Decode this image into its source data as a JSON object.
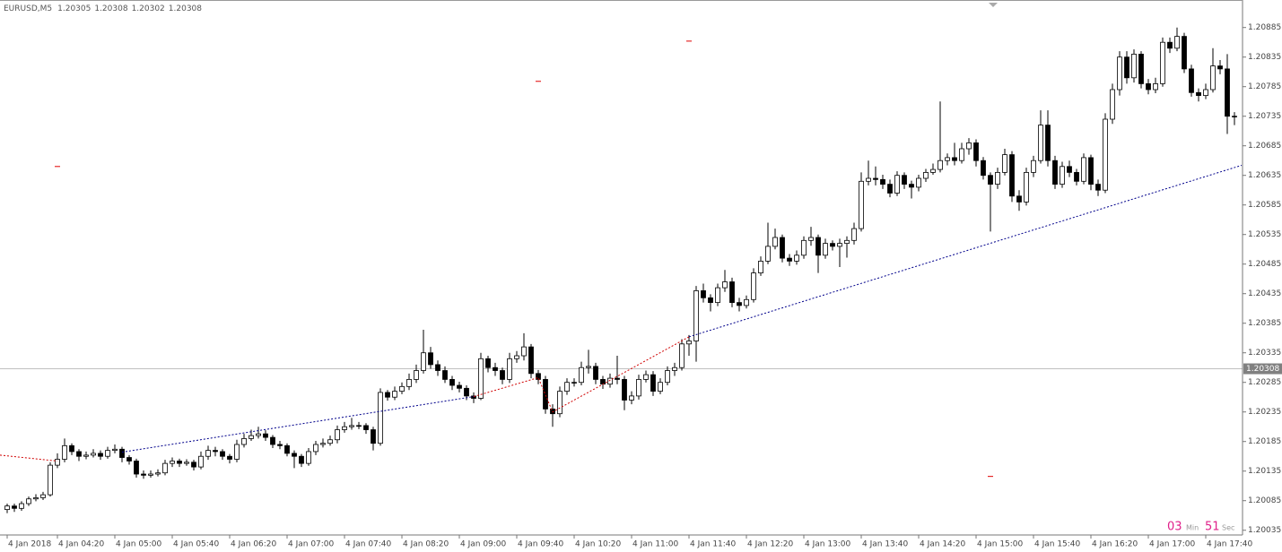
{
  "header": {
    "symbol": "EURUSD,M5",
    "prices": [
      1.20305,
      1.20308,
      1.20302,
      1.20308
    ]
  },
  "timer": {
    "minutes": "03",
    "min_label": "Min",
    "seconds": "51",
    "sec_label": "Sec"
  },
  "chart_data": {
    "type": "candlestick",
    "up_color": "#ffffff",
    "down_color": "#000000",
    "edge_color": "#000000",
    "ylim": [
      1.20027,
      1.2093
    ],
    "yticks": [
      1.20885,
      1.20835,
      1.20785,
      1.20735,
      1.20685,
      1.20635,
      1.20585,
      1.20535,
      1.20485,
      1.20435,
      1.20385,
      1.20335,
      1.20285,
      1.20235,
      1.20185,
      1.20135,
      1.20085,
      1.20035
    ],
    "xticks": [
      {
        "value": 0,
        "label": "4 Jan 2018"
      },
      {
        "value": 7,
        "label": "4 Jan 04:20"
      },
      {
        "value": 15,
        "label": "4 Jan 05:00"
      },
      {
        "value": 23,
        "label": "4 Jan 05:40"
      },
      {
        "value": 31,
        "label": "4 Jan 06:20"
      },
      {
        "value": 39,
        "label": "4 Jan 07:00"
      },
      {
        "value": 47,
        "label": "4 Jan 07:40"
      },
      {
        "value": 55,
        "label": "4 Jan 08:20"
      },
      {
        "value": 63,
        "label": "4 Jan 09:00"
      },
      {
        "value": 71,
        "label": "4 Jan 09:40"
      },
      {
        "value": 79,
        "label": "4 Jan 10:20"
      },
      {
        "value": 87,
        "label": "4 Jan 11:00"
      },
      {
        "value": 95,
        "label": "4 Jan 11:40"
      },
      {
        "value": 103,
        "label": "4 Jan 12:20"
      },
      {
        "value": 111,
        "label": "4 Jan 13:00"
      },
      {
        "value": 119,
        "label": "4 Jan 13:40"
      },
      {
        "value": 127,
        "label": "4 Jan 14:20"
      },
      {
        "value": 135,
        "label": "4 Jan 15:00"
      },
      {
        "value": 143,
        "label": "4 Jan 15:40"
      },
      {
        "value": 151,
        "label": "4 Jan 16:20"
      },
      {
        "value": 159,
        "label": "4 Jan 17:00"
      },
      {
        "value": 167,
        "label": "4 Jan 17:40"
      }
    ],
    "bid": {
      "value": 1.20308,
      "color": "#c0c0c0",
      "label_color": "#808080"
    },
    "open": [
      1.2007,
      1.20076,
      1.20072,
      1.2008,
      1.20088,
      1.2009,
      1.20095,
      1.20145,
      1.20155,
      1.20178,
      1.20168,
      1.2016,
      1.20162,
      1.20165,
      1.2016,
      1.2017,
      1.20172,
      1.20158,
      1.20152,
      1.2013,
      1.20128,
      1.2013,
      1.20132,
      1.20148,
      1.20152,
      1.20148,
      1.2015,
      1.20142,
      1.2016,
      1.2017,
      1.20168,
      1.2016,
      1.20155,
      1.2018,
      1.2019,
      1.20195,
      1.20198,
      1.20192,
      1.2018,
      1.20178,
      1.20165,
      1.2016,
      1.20148,
      1.20168,
      1.2018,
      1.20182,
      1.20188,
      1.20205,
      1.2021,
      1.20212,
      1.20212,
      1.20205,
      1.20182,
      1.20268,
      1.2026,
      1.2027,
      1.20278,
      1.2029,
      1.20305,
      1.20335,
      1.20315,
      1.20305,
      1.2029,
      1.2028,
      1.20275,
      1.20262,
      1.20258,
      1.20325,
      1.2031,
      1.20305,
      1.2029,
      1.20325,
      1.2033,
      1.20345,
      1.203,
      1.2029,
      1.2024,
      1.20232,
      1.2027,
      1.20285,
      1.20285,
      1.2031,
      1.20312,
      1.2029,
      1.20282,
      1.20292,
      1.2029,
      1.20255,
      1.20262,
      1.2029,
      1.20298,
      1.2027,
      1.20285,
      1.20305,
      1.2031,
      1.2035,
      1.20355,
      1.2044,
      1.20428,
      1.2042,
      1.20445,
      1.20455,
      1.2042,
      1.20415,
      1.20425,
      1.2047,
      1.2049,
      1.20515,
      1.2053,
      1.20495,
      1.2049,
      1.205,
      1.20525,
      1.2053,
      1.205,
      1.2052,
      1.20515,
      1.2052,
      1.20525,
      1.20545,
      1.20625,
      1.2063,
      1.20628,
      1.2062,
      1.20605,
      1.20635,
      1.2062,
      1.20615,
      1.2063,
      1.2064,
      1.20645,
      1.2066,
      1.20665,
      1.2066,
      1.2068,
      1.2069,
      1.2066,
      1.20635,
      1.2062,
      1.2064,
      1.2067,
      1.206,
      1.2059,
      1.2064,
      1.2066,
      1.2072,
      1.2066,
      1.2062,
      1.2065,
      1.2064,
      1.20625,
      1.20665,
      1.2062,
      1.2061,
      1.2073,
      1.2078,
      1.20835,
      1.208,
      1.2084,
      1.2079,
      1.2078,
      1.2079,
      1.2086,
      1.2085,
      1.2087,
      1.20815,
      1.20775,
      1.2077,
      1.2078,
      1.2082,
      1.20815,
      1.20735
    ],
    "close": [
      1.20076,
      1.20072,
      1.2008,
      1.20088,
      1.2009,
      1.20095,
      1.20145,
      1.20155,
      1.20178,
      1.20168,
      1.2016,
      1.20162,
      1.20165,
      1.2016,
      1.2017,
      1.20172,
      1.20158,
      1.20152,
      1.2013,
      1.20128,
      1.2013,
      1.20132,
      1.20148,
      1.20152,
      1.20148,
      1.2015,
      1.20142,
      1.2016,
      1.2017,
      1.20168,
      1.2016,
      1.20155,
      1.2018,
      1.2019,
      1.20195,
      1.20198,
      1.20192,
      1.2018,
      1.20178,
      1.20165,
      1.2016,
      1.20148,
      1.20168,
      1.2018,
      1.20182,
      1.20188,
      1.20205,
      1.2021,
      1.20212,
      1.20212,
      1.20205,
      1.20182,
      1.20268,
      1.2026,
      1.2027,
      1.20278,
      1.2029,
      1.20305,
      1.20335,
      1.20315,
      1.20305,
      1.2029,
      1.2028,
      1.20275,
      1.20262,
      1.20258,
      1.20325,
      1.2031,
      1.20305,
      1.2029,
      1.20325,
      1.2033,
      1.20345,
      1.203,
      1.2029,
      1.2024,
      1.20232,
      1.2027,
      1.20285,
      1.20285,
      1.2031,
      1.20312,
      1.2029,
      1.20282,
      1.20292,
      1.2029,
      1.20255,
      1.20262,
      1.2029,
      1.20298,
      1.2027,
      1.20285,
      1.20305,
      1.2031,
      1.2035,
      1.20355,
      1.2044,
      1.20428,
      1.2042,
      1.20445,
      1.20455,
      1.2042,
      1.20415,
      1.20425,
      1.2047,
      1.2049,
      1.20515,
      1.2053,
      1.20495,
      1.2049,
      1.205,
      1.20525,
      1.2053,
      1.205,
      1.2052,
      1.20515,
      1.2052,
      1.20525,
      1.20545,
      1.20625,
      1.2063,
      1.20628,
      1.2062,
      1.20605,
      1.20635,
      1.2062,
      1.20615,
      1.2063,
      1.2064,
      1.20645,
      1.2066,
      1.20665,
      1.2066,
      1.2068,
      1.2069,
      1.2066,
      1.20635,
      1.2062,
      1.2064,
      1.2067,
      1.206,
      1.2059,
      1.2064,
      1.2066,
      1.2072,
      1.2066,
      1.2062,
      1.2065,
      1.2064,
      1.20625,
      1.20665,
      1.2062,
      1.2061,
      1.2073,
      1.2078,
      1.20835,
      1.208,
      1.2084,
      1.2079,
      1.2078,
      1.2079,
      1.2086,
      1.2085,
      1.2087,
      1.20815,
      1.20775,
      1.2077,
      1.2078,
      1.2082,
      1.20815,
      1.20735,
      1.20735
    ],
    "high": [
      1.2008,
      1.2008,
      1.20084,
      1.20092,
      1.20096,
      1.201,
      1.2015,
      1.20165,
      1.2019,
      1.20182,
      1.20172,
      1.20168,
      1.20172,
      1.2017,
      1.20176,
      1.2018,
      1.20176,
      1.20162,
      1.20156,
      1.20136,
      1.20136,
      1.20138,
      1.20154,
      1.20158,
      1.20156,
      1.20155,
      1.20154,
      1.20168,
      1.20178,
      1.20176,
      1.20172,
      1.20164,
      1.20188,
      1.20198,
      1.20205,
      1.2021,
      1.20204,
      1.20196,
      1.20186,
      1.20182,
      1.2017,
      1.20164,
      1.20174,
      1.20186,
      1.2019,
      1.20195,
      1.20212,
      1.20218,
      1.20225,
      1.20218,
      1.20216,
      1.2021,
      1.20275,
      1.20272,
      1.20278,
      1.20285,
      1.203,
      1.20315,
      1.20374,
      1.20345,
      1.20322,
      1.20312,
      1.20296,
      1.20286,
      1.2028,
      1.20268,
      1.20335,
      1.2033,
      1.20318,
      1.2031,
      1.20335,
      1.20338,
      1.20368,
      1.2035,
      1.20306,
      1.20296,
      1.20248,
      1.20278,
      1.20292,
      1.20292,
      1.2032,
      1.2034,
      1.20318,
      1.20296,
      1.203,
      1.2033,
      1.20296,
      1.2027,
      1.20298,
      1.20305,
      1.20304,
      1.20292,
      1.20312,
      1.20318,
      1.20358,
      1.20365,
      1.20448,
      1.20452,
      1.20434,
      1.20452,
      1.20475,
      1.20462,
      1.20428,
      1.20432,
      1.20478,
      1.20498,
      1.20555,
      1.20545,
      1.20535,
      1.20502,
      1.20508,
      1.20532,
      1.20548,
      1.20535,
      1.20528,
      1.20525,
      1.20528,
      1.20532,
      1.20555,
      1.2064,
      1.2066,
      1.2065,
      1.20636,
      1.20628,
      1.20642,
      1.2064,
      1.20626,
      1.20636,
      1.20646,
      1.20655,
      1.2076,
      1.20672,
      1.2069,
      1.2069,
      1.20698,
      1.20696,
      1.20666,
      1.2064,
      1.20648,
      1.2068,
      1.20676,
      1.2061,
      1.20648,
      1.20668,
      1.20745,
      1.20745,
      1.20668,
      1.20658,
      1.2066,
      1.20646,
      1.20672,
      1.2067,
      1.20628,
      1.2074,
      1.2079,
      1.20845,
      1.20845,
      1.20848,
      1.20845,
      1.20798,
      1.208,
      1.20868,
      1.20868,
      1.20885,
      1.20876,
      1.20822,
      1.20782,
      1.2079,
      1.2085,
      1.2083,
      1.2084,
      1.20742
    ],
    "low": [
      1.20064,
      1.20066,
      1.20068,
      1.20076,
      1.20084,
      1.20086,
      1.20092,
      1.2014,
      1.2015,
      1.20162,
      1.20152,
      1.20155,
      1.20158,
      1.20154,
      1.20156,
      1.20165,
      1.2015,
      1.20146,
      1.20124,
      1.20122,
      1.20124,
      1.20126,
      1.20128,
      1.20142,
      1.20142,
      1.20144,
      1.20136,
      1.20138,
      1.20154,
      1.2016,
      1.20154,
      1.20148,
      1.2015,
      1.20175,
      1.20186,
      1.2019,
      1.20186,
      1.20174,
      1.20172,
      1.2016,
      1.2014,
      1.20142,
      1.20144,
      1.20162,
      1.20175,
      1.20178,
      1.20182,
      1.202,
      1.20205,
      1.20206,
      1.20198,
      1.2017,
      1.20178,
      1.20254,
      1.20255,
      1.20265,
      1.20272,
      1.20284,
      1.203,
      1.20308,
      1.20296,
      1.20284,
      1.20272,
      1.20268,
      1.20255,
      1.2025,
      1.20255,
      1.20302,
      1.20296,
      1.20282,
      1.20284,
      1.20318,
      1.20322,
      1.20292,
      1.20282,
      1.20232,
      1.2021,
      1.20226,
      1.20264,
      1.20278,
      1.2028,
      1.203,
      1.20282,
      1.20274,
      1.20276,
      1.20282,
      1.20238,
      1.20248,
      1.20256,
      1.20285,
      1.20262,
      1.20265,
      1.2028,
      1.20296,
      1.20305,
      1.2033,
      1.2032,
      1.2042,
      1.20405,
      1.20414,
      1.20438,
      1.20412,
      1.20405,
      1.2041,
      1.2042,
      1.20465,
      1.20485,
      1.2051,
      1.20488,
      1.20482,
      1.20484,
      1.20494,
      1.20516,
      1.2047,
      1.20494,
      1.20508,
      1.2048,
      1.20496,
      1.20518,
      1.2054,
      1.20618,
      1.20618,
      1.20612,
      1.20598,
      1.206,
      1.20612,
      1.20596,
      1.20608,
      1.20624,
      1.20636,
      1.2064,
      1.20652,
      1.20652,
      1.20655,
      1.2067,
      1.2065,
      1.20628,
      1.2054,
      1.20612,
      1.20635,
      1.2059,
      1.20575,
      1.20584,
      1.20632,
      1.20655,
      1.2065,
      1.20612,
      1.20614,
      1.20632,
      1.20618,
      1.2062,
      1.2061,
      1.206,
      1.20605,
      1.20722,
      1.2077,
      1.2079,
      1.20792,
      1.20782,
      1.20772,
      1.20774,
      1.20785,
      1.20842,
      1.20845,
      1.20808,
      1.20768,
      1.2076,
      1.20764,
      1.20775,
      1.20806,
      1.20705,
      1.2072
    ],
    "lines": [
      {
        "color": "#d00000",
        "x": [
          -1,
          7
        ],
        "y": [
          1.20162,
          1.20152
        ]
      },
      {
        "color": "#00008b",
        "x": [
          16,
          65
        ],
        "y": [
          1.20167,
          1.20261
        ]
      },
      {
        "color": "#d00000",
        "x": [
          65,
          74,
          76,
          95
        ],
        "y": [
          1.20261,
          1.20293,
          1.20235,
          1.20362
        ]
      },
      {
        "color": "#00008b",
        "x": [
          95,
          172
        ],
        "y": [
          1.20362,
          1.20652
        ]
      }
    ],
    "markers": {
      "color": "#e00000",
      "x": [
        7,
        74,
        95,
        137
      ],
      "y": [
        1.2065,
        1.20794,
        1.20862,
        1.20126
      ]
    }
  }
}
